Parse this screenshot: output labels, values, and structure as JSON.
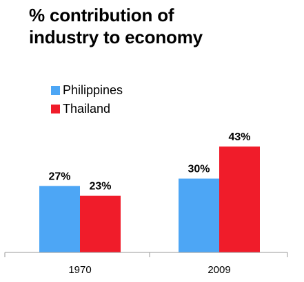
{
  "chart_data": {
    "type": "bar",
    "title_lines": [
      "% contribution of",
      "industry to economy"
    ],
    "categories": [
      "1970",
      "2009"
    ],
    "series": [
      {
        "name": "Philippines",
        "color": "#4DA6F5",
        "values": [
          27,
          30
        ],
        "labels": [
          "27%",
          "30%"
        ]
      },
      {
        "name": "Thailand",
        "color": "#F01C2A",
        "values": [
          23,
          43
        ],
        "labels": [
          "23%",
          "43%"
        ]
      }
    ],
    "ylim": [
      0,
      100
    ],
    "grid": false,
    "legend_position": "top-left",
    "xlabel": "",
    "ylabel": ""
  }
}
